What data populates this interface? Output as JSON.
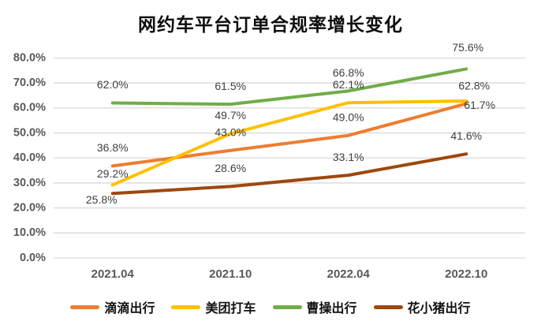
{
  "title": "网约车平台订单合规率增长变化",
  "chart_data": {
    "type": "line",
    "title": "网约车平台订单合规率增长变化",
    "xlabel": "",
    "ylabel": "",
    "categories": [
      "2021.04",
      "2021.10",
      "2022.04",
      "2022.10"
    ],
    "series": [
      {
        "name": "滴滴出行",
        "color": "#ED7D31",
        "values": [
          36.8,
          43.0,
          49.0,
          61.7
        ],
        "labels": [
          "36.8%",
          "43.0%",
          "49.0%",
          "61.7%"
        ]
      },
      {
        "name": "美团打车",
        "color": "#FFC000",
        "values": [
          29.2,
          49.7,
          62.1,
          62.8
        ],
        "labels": [
          "29.2%",
          "49.7%",
          "62.1%",
          "62.8%"
        ]
      },
      {
        "name": "曹操出行",
        "color": "#70AD47",
        "values": [
          62.0,
          61.5,
          66.8,
          75.6
        ],
        "labels": [
          "62.0%",
          "61.5%",
          "66.8%",
          "75.6%"
        ]
      },
      {
        "name": "花小猪出行",
        "color": "#9E480E",
        "values": [
          25.8,
          28.6,
          33.1,
          41.6
        ],
        "labels": [
          "25.8%",
          "28.6%",
          "33.1%",
          "41.6%"
        ]
      }
    ],
    "ylim": [
      0,
      80
    ],
    "ytick_step": 10,
    "yticks": [
      "0.0%",
      "10.0%",
      "20.0%",
      "30.0%",
      "40.0%",
      "50.0%",
      "60.0%",
      "70.0%",
      "80.0%"
    ],
    "grid": true,
    "data_labels": true,
    "legend_position": "bottom"
  },
  "style": {
    "gridline_color": "#D9D9D9",
    "axis_text_color": "#595959",
    "data_label_color": "#3F3F3F",
    "background_color": "#FFFFFF"
  }
}
